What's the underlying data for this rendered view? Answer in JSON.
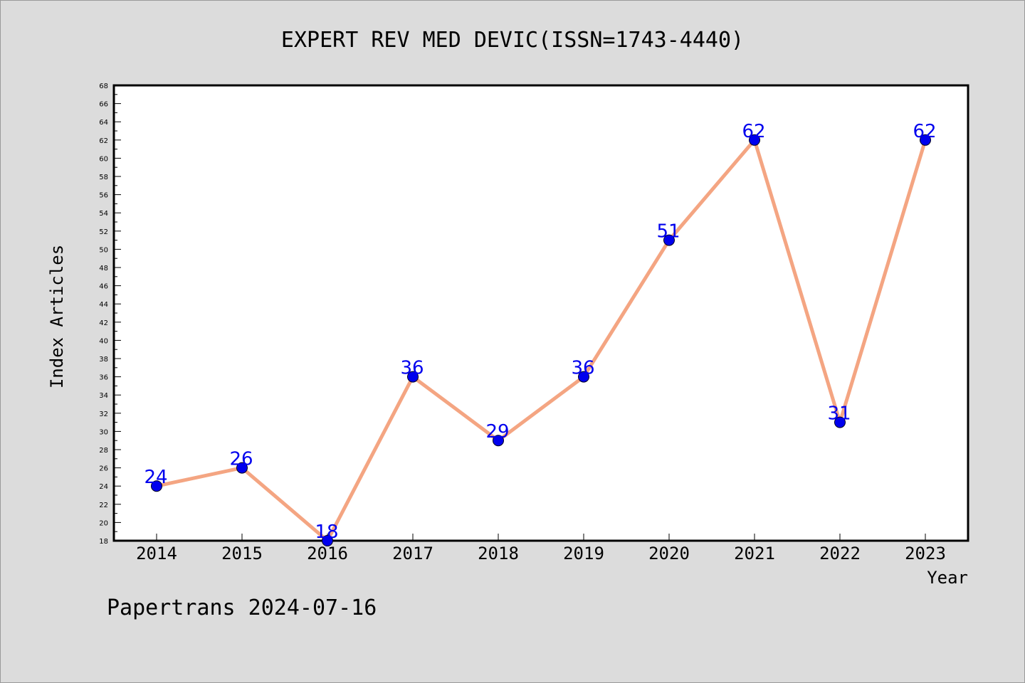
{
  "chart_data": {
    "type": "line",
    "title": "EXPERT REV MED DEVIC(ISSN=1743-4440)",
    "xlabel": "Year",
    "ylabel": "Index Articles",
    "categories": [
      "2014",
      "2015",
      "2016",
      "2017",
      "2018",
      "2019",
      "2020",
      "2021",
      "2022",
      "2023"
    ],
    "values": [
      24,
      26,
      18,
      36,
      29,
      36,
      51,
      62,
      31,
      62
    ],
    "ylim": [
      18,
      68
    ],
    "ytick_step": 2,
    "grid": false,
    "line_color": "#f4a582",
    "marker_color": "#0000ee",
    "label_color": "#0000ee",
    "footer": "Papertrans 2024-07-16"
  }
}
